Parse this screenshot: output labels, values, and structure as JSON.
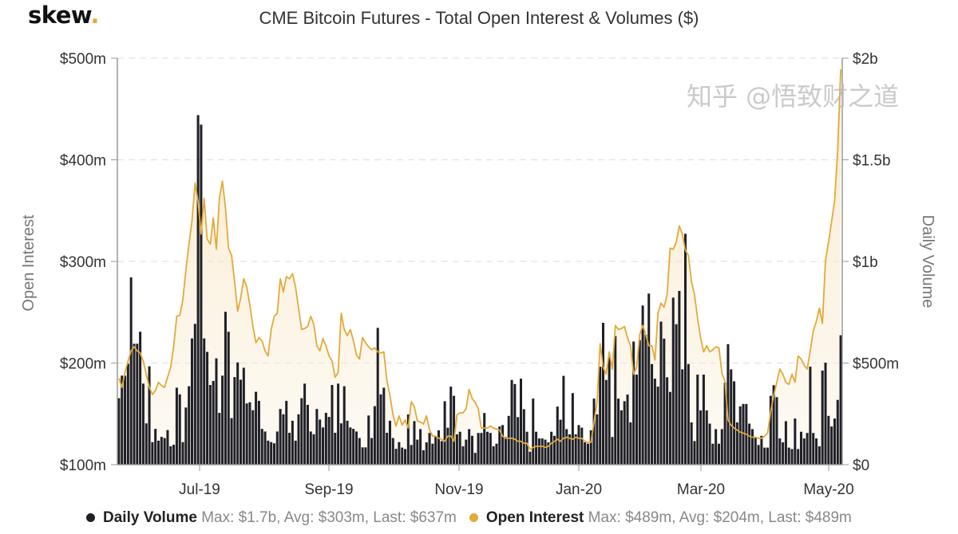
{
  "brand": {
    "logo_text": "skew",
    "logo_dot": "."
  },
  "watermark": "知乎 @悟致财之道",
  "colors": {
    "volume": "#1f1f27",
    "open_interest": "#e3a93a",
    "oi_fill": "#f6e3bf"
  },
  "chart_data": {
    "type": "bar+area",
    "title": "CME Bitcoin Futures - Total Open Interest & Volumes ($)",
    "xlabel": "",
    "x_tick_labels": [
      "Jul-19",
      "Sep-19",
      "Nov-19",
      "Jan-20",
      "Mar-20",
      "May-20"
    ],
    "y_left": {
      "label": "Open Interest",
      "ticks": [
        "$100m",
        "$200m",
        "$300m",
        "$400m",
        "$500m"
      ],
      "range_musd": [
        100,
        500
      ]
    },
    "y_right": {
      "label": "Daily Volume",
      "ticks": [
        "$0",
        "$500m",
        "$1b",
        "$1.5b",
        "$2b"
      ],
      "range_musd": [
        0,
        2000
      ]
    },
    "grid": "horizontal dashed",
    "legend_position": "bottom",
    "series": [
      {
        "name": "Daily Volume",
        "type": "bar",
        "axis": "right",
        "unit": "$m",
        "stats": "Max: $1.7b, Avg: $303m, Last: $637m",
        "values": [
          327,
          438,
          438,
          497,
          921,
          595,
          595,
          654,
          399,
          203,
          484,
          111,
          176,
          118,
          137,
          131,
          170,
          91,
          98,
          379,
          346,
          111,
          281,
          386,
          621,
          693,
          1720,
          1673,
          621,
          555,
          392,
          412,
          523,
          255,
          438,
          752,
          654,
          229,
          431,
          503,
          418,
          477,
          301,
          307,
          268,
          359,
          314,
          176,
          163,
          118,
          111,
          105,
          163,
          274,
          248,
          314,
          157,
          216,
          118,
          248,
          327,
          399,
          294,
          163,
          150,
          274,
          222,
          183,
          255,
          235,
          392,
          157,
          399,
          203,
          386,
          216,
          183,
          176,
          163,
          131,
          85,
          85,
          242,
          131,
          288,
          673,
          346,
          379,
          157,
          216,
          131,
          78,
          111,
          84,
          77,
          247,
          97,
          214,
          123,
          175,
          71,
          110,
          156,
          103,
          142,
          169,
          116,
          312,
          182,
          384,
          339,
          149,
          162,
          90,
          123,
          175,
          142,
          58,
          156,
          156,
          254,
          162,
          156,
          90,
          103,
          188,
          195,
          136,
          240,
          417,
          397,
          234,
          423,
          273,
          162,
          64,
          325,
          162,
          129,
          129,
          123,
          110,
          162,
          142,
          286,
          221,
          437,
          175,
          149,
          352,
          149,
          195,
          182,
          110,
          103,
          169,
          325,
          247,
          482,
          698,
          417,
          528,
          136,
          633,
          325,
          267,
          312,
          345,
          208,
          606,
          443,
          613,
          783,
          639,
          842,
          495,
          423,
          384,
          704,
          620,
          430,
          358,
          822,
          691,
          855,
          469,
          1136,
          495,
          208,
          116,
          443,
          267,
          443,
          267,
          202,
          103,
          175,
          103,
          175,
          404,
          593,
          469,
          410,
          208,
          287,
          299,
          299,
          202,
          175,
          136,
          97,
          142,
          84,
          84,
          339,
          391,
          332,
          129,
          110,
          214,
          84,
          77,
          227,
          77,
          162,
          129,
          156,
          482,
          156,
          129,
          90,
          463,
          502,
          240,
          188,
          227,
          319,
          637
        ]
      },
      {
        "name": "Open Interest",
        "type": "area",
        "axis": "left",
        "unit": "$m",
        "stats": "Max: $489m, Avg: $204m, Last: $489m",
        "values": [
          185,
          176,
          191,
          202,
          212,
          216,
          212,
          210,
          202,
          189,
          176,
          169,
          173,
          181,
          178,
          176,
          186,
          196,
          217,
          246,
          247,
          262,
          291,
          317,
          340,
          377,
          359,
          327,
          362,
          322,
          317,
          343,
          312,
          362,
          379,
          353,
          313,
          306,
          280,
          251,
          264,
          283,
          275,
          257,
          236,
          220,
          225,
          222,
          212,
          207,
          233,
          246,
          249,
          283,
          270,
          285,
          283,
          288,
          275,
          254,
          233,
          234,
          236,
          246,
          238,
          217,
          212,
          224,
          217,
          207,
          202,
          186,
          191,
          249,
          233,
          227,
          233,
          222,
          208,
          204,
          225,
          220,
          216,
          213,
          215,
          211,
          210,
          211,
          183,
          168,
          149,
          138,
          148,
          139,
          144,
          136,
          162,
          157,
          143,
          142,
          140,
          148,
          134,
          128,
          128,
          126,
          125,
          123,
          128,
          128,
          123,
          149,
          151,
          151,
          155,
          174,
          165,
          161,
          155,
          136,
          136,
          136,
          138,
          136,
          135,
          134,
          128,
          126,
          126,
          126,
          125,
          123,
          123,
          121,
          121,
          115,
          117,
          118,
          118,
          118,
          117,
          118,
          121,
          123,
          125,
          123,
          126,
          127,
          126,
          125,
          127,
          126,
          126,
          123,
          122,
          122,
          142,
          162,
          219,
          196,
          189,
          211,
          194,
          237,
          233,
          234,
          236,
          225,
          217,
          189,
          196,
          228,
          237,
          228,
          217,
          217,
          203,
          249,
          259,
          255,
          267,
          313,
          312,
          319,
          335,
          327,
          311,
          306,
          280,
          267,
          244,
          225,
          211,
          217,
          211,
          213,
          216,
          215,
          190,
          182,
          144,
          139,
          136,
          134,
          132,
          131,
          130,
          128,
          127,
          127,
          126,
          126,
          128,
          131,
          152,
          168,
          181,
          194,
          189,
          181,
          179,
          189,
          181,
          207,
          204,
          198,
          194,
          212,
          232,
          241,
          254,
          239,
          301,
          319,
          339,
          360,
          410,
          489
        ]
      }
    ]
  }
}
